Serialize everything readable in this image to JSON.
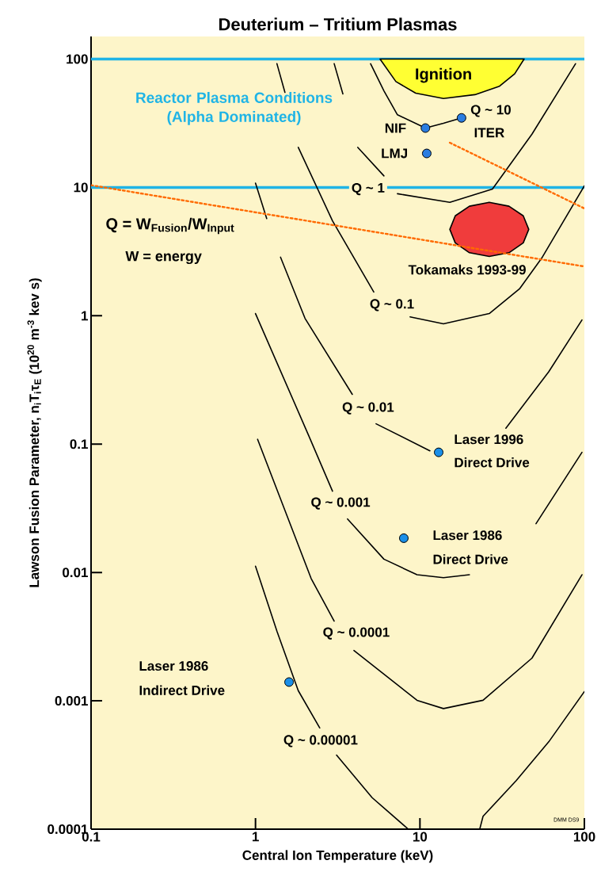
{
  "chart_data": {
    "type": "line",
    "title": "Deuterium – Tritium Plasmas",
    "xlabel": "Central Ion Temperature (keV)",
    "ylabel": "Lawson Fusion Parameter, n$_{i}$T$_{i}$τ$_{E}$ (10$^{20}$ m$^{-3}$ kev s)",
    "log": "xy",
    "xlim": [
      0.1,
      100
    ],
    "ylim": [
      0.0001,
      150
    ],
    "xticks": [
      0.1,
      1,
      10,
      100
    ],
    "yticks": [
      0.0001,
      0.001,
      0.01,
      0.1,
      1,
      10,
      100
    ],
    "marker": "circle",
    "ref_lines": [
      {
        "axis": "y",
        "value": 100,
        "label": "Reactor Plasma Conditions (Alpha Dominated)",
        "color": "#1fb4e6"
      },
      {
        "axis": "y",
        "value": 10,
        "color": "#1fb4e6"
      }
    ],
    "series": [
      {
        "type": "area",
        "marker": "none",
        "color": "#ffff33",
        "x": [
          5.72,
          7.14,
          9.42,
          13.9,
          21.6,
          30.5,
          37.7,
          43.0
        ],
        "values": [
          100,
          66.8,
          54.3,
          49.3,
          52.8,
          61.5,
          76.8,
          100
        ]
      },
      {
        "type": "area",
        "marker": "none",
        "color": "#f03c3c",
        "x": [
          45.9,
          42.5,
          34.8,
          26.4,
          20.0,
          16.4,
          15.2,
          16.4,
          20.0,
          26.4,
          34.8,
          42.5
        ],
        "values": [
          4.71,
          6.01,
          7.14,
          7.66,
          7.14,
          6.01,
          4.71,
          3.7,
          3.1,
          2.9,
          3.1,
          3.7
        ]
      },
      {
        "marker": "none",
        "color": "#000000",
        "x": [
          5.01,
          6.04,
          7.3,
          10.8,
          13.9,
          17.9
        ],
        "values": [
          92,
          56.6,
          36.8,
          29,
          31.6,
          34.8
        ]
      },
      {
        "marker": "none",
        "color": "#000000",
        "x": [
          3.01,
          3.4,
          3.8,
          4.19,
          6.04,
          6.6,
          7.3,
          15.2,
          27.6,
          48.0,
          88.4
        ],
        "values": [
          92,
          53.5,
          null,
          20.5,
          12.3,
          null,
          8.93,
          7.66,
          9.7,
          26.0,
          92
        ]
      },
      {
        "marker": "none",
        "color": "#000000",
        "x": [
          1.35,
          1.51,
          1.65,
          1.82,
          2.94,
          5.24,
          6.6,
          8.71,
          13.9,
          26.4,
          40.3,
          55.5,
          100
        ],
        "values": [
          92,
          55.0,
          null,
          20.5,
          5.49,
          1.53,
          null,
          0.98,
          0.865,
          1.04,
          1.62,
          2.86,
          10.3
        ]
      },
      {
        "marker": "none",
        "color": "#000000",
        "x": [
          1,
          1.17,
          1.3,
          1.42,
          2.0,
          3.88,
          4.5,
          5.41,
          11.5,
          25,
          33.3,
          60.7,
          96.7
        ],
        "values": [
          10.8,
          5.72,
          null,
          2.86,
          0.955,
          0.244,
          null,
          0.144,
          0.0887,
          null,
          0.133,
          0.366,
          0.927
        ]
      },
      {
        "marker": "none",
        "color": "#000000",
        "x": [
          1,
          2.11,
          2.94,
          3.3,
          3.63,
          6.04,
          9.6,
          13.9,
          20.0,
          30,
          50.8,
          96.7
        ],
        "values": [
          1.04,
          0.116,
          0.043,
          null,
          0.0261,
          0.0127,
          0.0096,
          0.0091,
          0.0096,
          null,
          0.024,
          0.0863
        ]
      },
      {
        "marker": "none",
        "color": "#000000",
        "x": [
          1.03,
          2.18,
          3.01,
          3.4,
          3.97,
          9.6,
          13.9,
          24.2,
          48.0,
          96.7
        ],
        "values": [
          0.109,
          0.00897,
          0.00418,
          null,
          0.00247,
          0.00101,
          0.00087,
          0.00101,
          0.00215,
          0.0096
        ]
      },
      {
        "marker": "none",
        "color": "#000000",
        "x": [
          1,
          1.35,
          1.82,
          2.46,
          2.8,
          3.11,
          5.12,
          8.5,
          14,
          23.1,
          24.2,
          38.5,
          60.7,
          100
        ],
        "values": [
          0.0112,
          0.00349,
          0.0012,
          0.000615,
          null,
          0.000378,
          0.000176,
          0.0001,
          null,
          0.0001,
          0.000126,
          0.000239,
          0.000479,
          0.00118
        ]
      },
      {
        "marker": "none",
        "color": "#ff6a00",
        "line_style": "dotted",
        "x": [
          0.1,
          100
        ],
        "values": [
          10.4,
          2.42
        ]
      },
      {
        "marker": "none",
        "color": "#ff6a00",
        "line_style": "dotted",
        "x": [
          15.2,
          100
        ],
        "values": [
          22.3,
          6.86
        ]
      },
      {
        "type": "scatter",
        "color": "#2a7de1",
        "x": [
          10.8,
          11.0,
          17.9
        ],
        "values": [
          29,
          18.4,
          34.8
        ]
      },
      {
        "type": "scatter",
        "color": "#1a8fe8",
        "x": [
          13.0,
          7.98,
          1.6
        ],
        "values": [
          0.0863,
          0.0185,
          0.0014
        ]
      }
    ],
    "annotations": [
      "Q = W$_{Fusion}$/W$_{Input}$",
      "W = energy",
      "DMM DS9",
      "Ignition",
      "NIF",
      "LMJ",
      "Q ~ 10",
      "ITER",
      "Q ~ 1",
      "Tokamaks 1993-99",
      "Q ~ 0.1",
      "Q ~ 0.01",
      "Laser 1996",
      "Direct Drive",
      "Q ~ 0.001",
      "Laser 1986",
      "Direct Drive",
      "Q ~ 0.0001",
      "Laser 1986",
      "Indirect Drive",
      "Q ~ 0.00001"
    ]
  }
}
